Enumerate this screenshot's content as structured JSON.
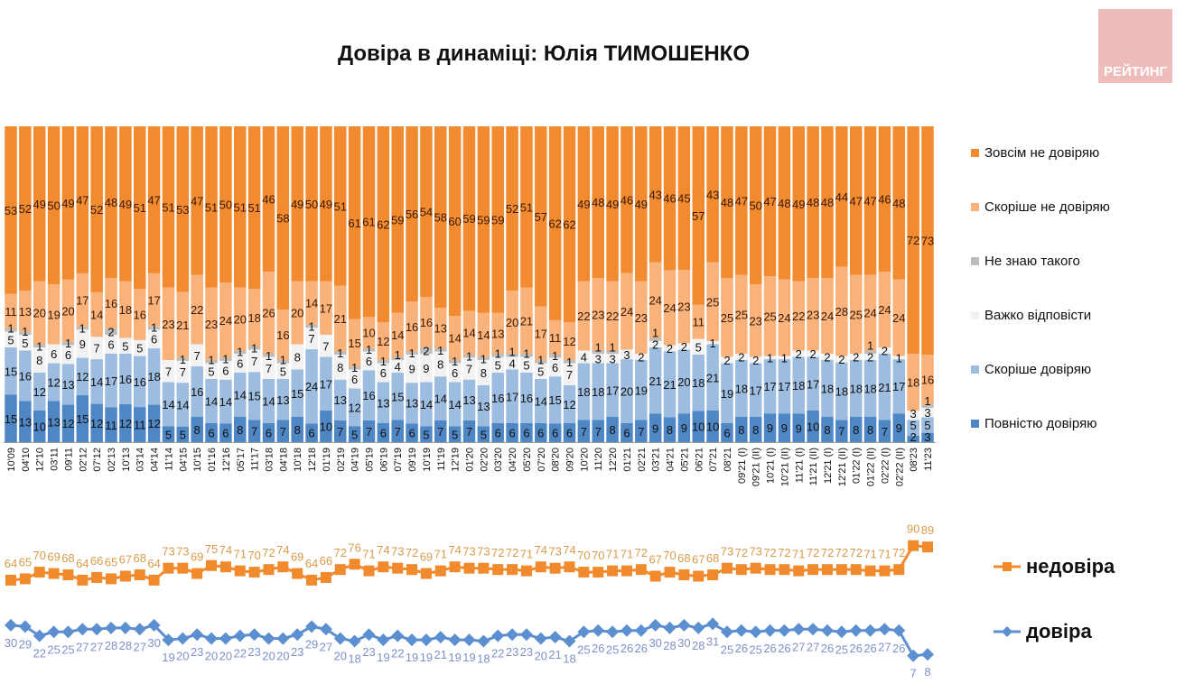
{
  "logo_text": "РЕЙТИНГ",
  "colors": {
    "full_distrust": "#f28a30",
    "rather_distrust": "#f9b27a",
    "dont_know": "#bdbdbd",
    "hard": "#f2f2f2",
    "rather_trust": "#9dbde0",
    "full_trust": "#4f87c5",
    "line_distrust": "#f08a2c",
    "line_trust": "#5b8fd0"
  },
  "chart_data": [
    {
      "type": "bar",
      "stacked": true,
      "title": "Довіра в динаміці: Юлія ТИМОШЕНКО",
      "ylim": [
        0,
        100
      ],
      "legend_position": "right",
      "categories": [
        "10'09",
        "04'10",
        "12'10",
        "03'11",
        "09'11",
        "02'12",
        "07'12",
        "02'13",
        "10'13",
        "03'14",
        "04'14",
        "11'14",
        "04'15",
        "10'15",
        "01'16",
        "12'16",
        "05'17",
        "11'17",
        "03'18",
        "04'18",
        "10'18",
        "12'18",
        "01'19",
        "02'19",
        "04'19",
        "05'19",
        "06'19",
        "07'19",
        "09'19",
        "10'19",
        "11'19",
        "12'19",
        "01'20",
        "02'20",
        "03'20",
        "04'20",
        "05'20",
        "07'20",
        "08'20",
        "09'20",
        "10'20",
        "11'20",
        "12'20",
        "01'21",
        "02'21",
        "03'21",
        "04'21",
        "05'21",
        "06'21",
        "07'21",
        "08'21",
        "09'21 (I)",
        "09'21 (II)",
        "10'21 (I)",
        "10'21 (II)",
        "11'21 (I)",
        "11'21 (II)",
        "12'21 (I)",
        "12'21 (II)",
        "01'22 (I)",
        "01'22 (II)",
        "02'22 (I)",
        "02'22 (II)",
        "08'23",
        "11'23"
      ],
      "series": [
        {
          "key": "full_trust",
          "name": "Повністю довіряю",
          "values": [
            15,
            13,
            10,
            13,
            12,
            15,
            12,
            11,
            12,
            11,
            12,
            5,
            5,
            8,
            6,
            6,
            8,
            7,
            6,
            7,
            8,
            6,
            10,
            7,
            5,
            7,
            6,
            7,
            6,
            5,
            7,
            5,
            7,
            5,
            6,
            6,
            6,
            6,
            6,
            6,
            7,
            7,
            8,
            6,
            7,
            9,
            8,
            9,
            10,
            10,
            6,
            8,
            8,
            9,
            9,
            9,
            10,
            8,
            7,
            8,
            8,
            7,
            9,
            2,
            3
          ]
        },
        {
          "key": "rather_trust",
          "name": "Скоріше довіряю",
          "values": [
            15,
            16,
            12,
            12,
            13,
            12,
            14,
            17,
            16,
            16,
            18,
            14,
            14,
            16,
            14,
            14,
            14,
            15,
            14,
            13,
            15,
            24,
            17,
            13,
            12,
            16,
            13,
            15,
            13,
            14,
            14,
            14,
            13,
            13,
            16,
            17,
            16,
            14,
            15,
            12,
            18,
            18,
            17,
            20,
            19,
            21,
            21,
            20,
            18,
            21,
            19,
            18,
            17,
            17,
            17,
            18,
            17,
            18,
            18,
            18,
            18,
            21,
            17,
            5,
            5
          ]
        },
        {
          "key": "hard",
          "name": "Важко відповісти",
          "values": [
            5,
            5,
            8,
            6,
            6,
            9,
            7,
            6,
            5,
            5,
            6,
            7,
            7,
            7,
            5,
            6,
            6,
            7,
            7,
            5,
            8,
            7,
            7,
            8,
            6,
            6,
            6,
            4,
            9,
            9,
            8,
            6,
            7,
            8,
            5,
            4,
            5,
            5,
            6,
            7,
            4,
            3,
            3,
            3,
            2,
            2,
            2,
            2,
            5,
            1,
            2,
            2,
            2,
            1,
            1,
            2,
            2,
            2,
            2,
            2,
            2,
            2,
            1,
            3,
            3
          ]
        },
        {
          "key": "dont_know",
          "name": "Не знаю такого",
          "values": [
            1,
            1,
            1,
            0,
            1,
            1,
            0,
            2,
            0,
            0,
            1,
            0,
            1,
            0,
            1,
            1,
            1,
            1,
            1,
            1,
            0,
            1,
            0,
            1,
            1,
            1,
            1,
            1,
            1,
            2,
            1,
            1,
            1,
            1,
            1,
            1,
            1,
            1,
            1,
            1,
            0,
            1,
            1,
            0,
            0,
            1,
            0,
            0,
            0,
            0,
            0,
            0,
            0,
            0,
            0,
            0,
            0,
            0,
            0,
            0,
            1,
            0,
            0,
            0,
            1
          ]
        },
        {
          "key": "rather_distrust",
          "name": "Скоріше не довіряю",
          "values": [
            11,
            13,
            20,
            19,
            20,
            17,
            14,
            16,
            18,
            16,
            17,
            23,
            21,
            22,
            23,
            24,
            20,
            18,
            26,
            16,
            20,
            14,
            17,
            21,
            15,
            10,
            12,
            14,
            16,
            16,
            13,
            14,
            14,
            14,
            13,
            20,
            21,
            17,
            11,
            12,
            22,
            23,
            22,
            24,
            23,
            24,
            24,
            23,
            11,
            25,
            25,
            25,
            23,
            25,
            24,
            22,
            23,
            24,
            28,
            25,
            24,
            24,
            24,
            18,
            16
          ]
        },
        {
          "key": "full_distrust",
          "name": "Зовсім не довіряю",
          "values": [
            53,
            52,
            49,
            50,
            49,
            47,
            52,
            48,
            49,
            51,
            47,
            51,
            53,
            47,
            51,
            50,
            51,
            51,
            46,
            58,
            49,
            50,
            49,
            51,
            61,
            61,
            62,
            59,
            56,
            54,
            58,
            60,
            59,
            59,
            59,
            52,
            51,
            57,
            62,
            62,
            49,
            48,
            49,
            46,
            49,
            43,
            46,
            45,
            57,
            43,
            48,
            47,
            50,
            47,
            48,
            49,
            48,
            48,
            44,
            47,
            47,
            46,
            48,
            72,
            73
          ]
        }
      ]
    },
    {
      "type": "line",
      "series": [
        {
          "key": "line_distrust",
          "name": "недовіра",
          "values": [
            64,
            65,
            70,
            69,
            68,
            64,
            66,
            65,
            67,
            68,
            64,
            73,
            73,
            69,
            75,
            74,
            71,
            70,
            72,
            74,
            69,
            64,
            66,
            72,
            76,
            71,
            74,
            73,
            72,
            69,
            71,
            74,
            73,
            73,
            72,
            72,
            71,
            74,
            73,
            74,
            70,
            70,
            71,
            71,
            72,
            67,
            70,
            68,
            67,
            68,
            73,
            72,
            73,
            72,
            72,
            71,
            72,
            72,
            72,
            72,
            71,
            71,
            72,
            90,
            89
          ]
        },
        {
          "key": "line_trust",
          "name": "довіра",
          "values": [
            30,
            29,
            22,
            25,
            25,
            27,
            27,
            28,
            28,
            27,
            30,
            19,
            20,
            23,
            20,
            20,
            22,
            23,
            20,
            20,
            23,
            29,
            27,
            20,
            18,
            23,
            19,
            22,
            19,
            19,
            21,
            19,
            19,
            18,
            22,
            23,
            23,
            20,
            21,
            18,
            25,
            26,
            25,
            26,
            26,
            30,
            28,
            30,
            28,
            31,
            25,
            26,
            25,
            26,
            26,
            27,
            27,
            26,
            25,
            26,
            26,
            27,
            26,
            7,
            8
          ]
        }
      ]
    }
  ]
}
